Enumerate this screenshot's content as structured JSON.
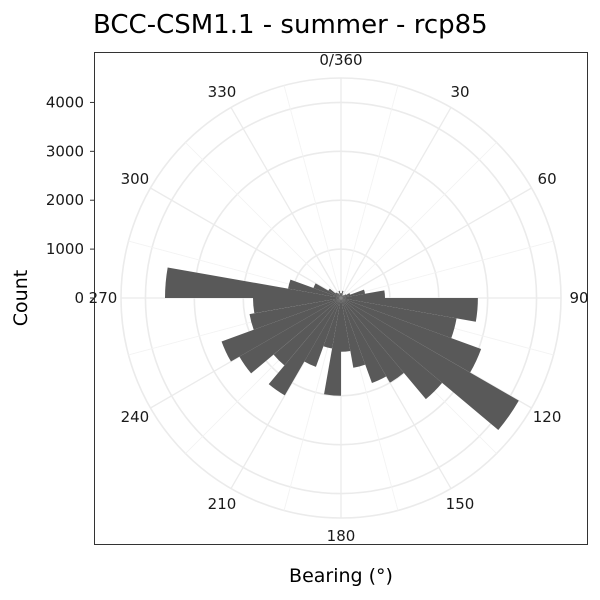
{
  "chart_data": {
    "type": "bar",
    "subtype": "polar-rose",
    "title": "BCC-CSM1.1 - summer - rcp85",
    "xlabel": "Bearing (°)",
    "ylabel": "Count",
    "y_ticks": [
      0,
      1000,
      2000,
      3000,
      4000
    ],
    "angle_labels": [
      "0/360",
      "30",
      "60",
      "90",
      "120",
      "150",
      "180",
      "210",
      "240",
      "270",
      "300",
      "330"
    ],
    "bin_width_deg": 10,
    "bins": [
      0,
      10,
      20,
      30,
      40,
      50,
      60,
      70,
      80,
      90,
      100,
      110,
      120,
      130,
      140,
      150,
      160,
      170,
      180,
      190,
      200,
      210,
      220,
      230,
      240,
      250,
      260,
      270,
      280,
      290,
      300,
      310,
      320,
      330,
      340,
      350
    ],
    "values": [
      100,
      150,
      80,
      60,
      80,
      120,
      200,
      500,
      900,
      2800,
      2400,
      3050,
      4200,
      2700,
      2000,
      1850,
      1450,
      1100,
      2000,
      1050,
      1500,
      2300,
      1800,
      2400,
      2600,
      1900,
      1800,
      3600,
      1100,
      600,
      300,
      150,
      120,
      80,
      150,
      100
    ],
    "ylim": [
      0,
      4500
    ],
    "grid": true
  }
}
